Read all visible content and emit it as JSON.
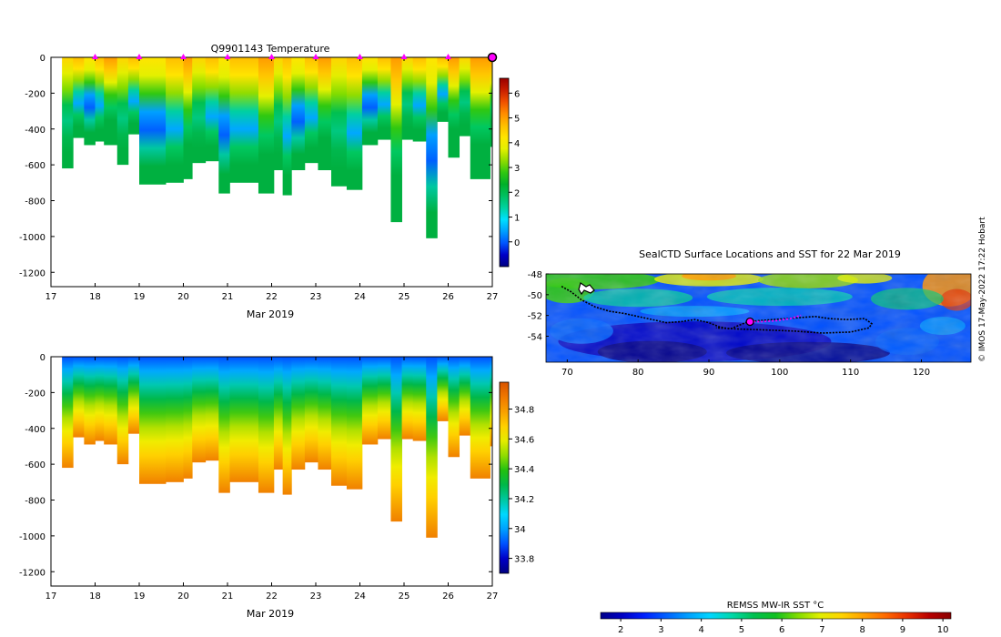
{
  "credit": "© IMOS 17-May-2022 17:22 Hobart",
  "colors": {
    "profile_temperature": [
      "#000080",
      "#0000c8",
      "#0055ff",
      "#00a0ff",
      "#00e0ff",
      "#00d2a0",
      "#00c060",
      "#00b02a",
      "#30c810",
      "#90dc00",
      "#e4f000",
      "#ffe400",
      "#ffbe00",
      "#ff8c00",
      "#f05000",
      "#c81e00",
      "#9a0000"
    ],
    "profile_salinity": [
      "#000080",
      "#0000c8",
      "#0050ff",
      "#00a0ff",
      "#00d8ff",
      "#00c8a0",
      "#00b84a",
      "#20c010",
      "#90dc00",
      "#e4ec00",
      "#ffd000",
      "#f8a000",
      "#f07800",
      "#d85400"
    ],
    "sst": [
      "#00008a",
      "#0000c4",
      "#0020ff",
      "#0060ff",
      "#00a0ff",
      "#00d6ff",
      "#00d8a8",
      "#00c050",
      "#10c020",
      "#80dc00",
      "#e0ee00",
      "#ffd400",
      "#ffa000",
      "#ff6a00",
      "#e83000",
      "#b80000",
      "#8a0000"
    ],
    "track": "#000000",
    "track_recent": "#ff00ff",
    "marker": "#ff00ff"
  },
  "chart_data": [
    {
      "id": "temperature-section",
      "type": "heatmap",
      "title": "Q9901143  Temperature",
      "xlabel": "Mar 2019",
      "ylabel": "",
      "xlim": [
        17,
        27
      ],
      "ylim": [
        -1280,
        0
      ],
      "xticks": [
        "17",
        "18",
        "19",
        "20",
        "21",
        "22",
        "23",
        "24",
        "25",
        "26",
        "27"
      ],
      "yticks": [
        "0",
        "-200",
        "-400",
        "-600",
        "-800",
        "-1000",
        "-1200"
      ],
      "colorbar": {
        "range": [
          -1,
          6.6
        ],
        "ticks": [
          "6",
          "5",
          "4",
          "3",
          "2",
          "1",
          "0"
        ]
      },
      "profile_marker_days": [
        18,
        19,
        20,
        21,
        22,
        23,
        24,
        25,
        26
      ],
      "last_profile_day": 27,
      "profiles": [
        {
          "x": 17.25,
          "w": 0.25,
          "depth": 620
        },
        {
          "x": 17.5,
          "w": 0.25,
          "depth": 450
        },
        {
          "x": 17.75,
          "w": 0.25,
          "depth": 490
        },
        {
          "x": 18.0,
          "w": 0.2,
          "depth": 470
        },
        {
          "x": 18.2,
          "w": 0.3,
          "depth": 490
        },
        {
          "x": 18.5,
          "w": 0.25,
          "depth": 600
        },
        {
          "x": 18.75,
          "w": 0.25,
          "depth": 430
        },
        {
          "x": 19.0,
          "w": 0.6,
          "depth": 710
        },
        {
          "x": 19.6,
          "w": 0.4,
          "depth": 700
        },
        {
          "x": 20.0,
          "w": 0.2,
          "depth": 680
        },
        {
          "x": 20.2,
          "w": 0.3,
          "depth": 590
        },
        {
          "x": 20.5,
          "w": 0.3,
          "depth": 580
        },
        {
          "x": 20.8,
          "w": 0.25,
          "depth": 760
        },
        {
          "x": 21.05,
          "w": 0.65,
          "depth": 700
        },
        {
          "x": 21.7,
          "w": 0.35,
          "depth": 760
        },
        {
          "x": 22.05,
          "w": 0.2,
          "depth": 630
        },
        {
          "x": 22.25,
          "w": 0.2,
          "depth": 770
        },
        {
          "x": 22.45,
          "w": 0.3,
          "depth": 630
        },
        {
          "x": 22.75,
          "w": 0.3,
          "depth": 590
        },
        {
          "x": 23.05,
          "w": 0.3,
          "depth": 630
        },
        {
          "x": 23.35,
          "w": 0.35,
          "depth": 720
        },
        {
          "x": 23.7,
          "w": 0.35,
          "depth": 740
        },
        {
          "x": 24.05,
          "w": 0.35,
          "depth": 490
        },
        {
          "x": 24.4,
          "w": 0.3,
          "depth": 460
        },
        {
          "x": 24.7,
          "w": 0.25,
          "depth": 920
        },
        {
          "x": 24.95,
          "w": 0.25,
          "depth": 460
        },
        {
          "x": 25.2,
          "w": 0.3,
          "depth": 470
        },
        {
          "x": 25.5,
          "w": 0.25,
          "depth": 1010
        },
        {
          "x": 25.75,
          "w": 0.25,
          "depth": 360
        },
        {
          "x": 26.0,
          "w": 0.25,
          "depth": 560
        },
        {
          "x": 26.25,
          "w": 0.25,
          "depth": 440
        },
        {
          "x": 26.5,
          "w": 0.45,
          "depth": 680
        },
        {
          "x": 26.95,
          "w": 0.05,
          "depth": 500
        }
      ]
    },
    {
      "id": "salinity-section",
      "type": "heatmap",
      "title": "",
      "xlabel": "Mar 2019",
      "ylabel": "",
      "xlim": [
        17,
        27
      ],
      "ylim": [
        -1280,
        0
      ],
      "xticks": [
        "17",
        "18",
        "19",
        "20",
        "21",
        "22",
        "23",
        "24",
        "25",
        "26",
        "27"
      ],
      "yticks": [
        "0",
        "-200",
        "-400",
        "-600",
        "-800",
        "-1000",
        "-1200"
      ],
      "colorbar": {
        "range": [
          33.7,
          34.98
        ],
        "ticks": [
          "34.8",
          "34.6",
          "34.4",
          "34.2",
          "34",
          "33.8"
        ]
      }
    },
    {
      "id": "sst-map",
      "type": "heatmap",
      "title": "SealCTD Surface Locations and SST for 22 Mar 2019",
      "xlabel": "",
      "ylabel": "",
      "xlim": [
        67,
        127
      ],
      "ylim": [
        -56.5,
        -48
      ],
      "xticks": [
        "70",
        "80",
        "90",
        "100",
        "110",
        "120"
      ],
      "yticks": [
        "-48",
        "-50",
        "-52",
        "-54"
      ],
      "track_lonlat": [
        [
          69.2,
          -49.2
        ],
        [
          70.5,
          -49.7
        ],
        [
          72,
          -50.5
        ],
        [
          74,
          -51.2
        ],
        [
          76,
          -51.6
        ],
        [
          78,
          -51.8
        ],
        [
          80,
          -52.1
        ],
        [
          82,
          -52.4
        ],
        [
          84,
          -52.7
        ],
        [
          86,
          -52.6
        ],
        [
          88,
          -52.4
        ],
        [
          90,
          -52.7
        ],
        [
          91.5,
          -53.1
        ],
        [
          93,
          -53.3
        ],
        [
          95.5,
          -52.6
        ],
        [
          97,
          -52.5
        ],
        [
          99,
          -52.4
        ],
        [
          101,
          -52.3
        ],
        [
          103,
          -52.2
        ],
        [
          105,
          -52.1
        ],
        [
          107,
          -52.3
        ],
        [
          109.5,
          -52.4
        ],
        [
          112,
          -52.3
        ],
        [
          113,
          -52.8
        ],
        [
          112.6,
          -53.2
        ],
        [
          110,
          -53.6
        ],
        [
          106,
          -53.7
        ],
        [
          102,
          -53.5
        ],
        [
          98,
          -53.4
        ],
        [
          94,
          -53.3
        ],
        [
          91,
          -53.2
        ]
      ],
      "recent_track_lonlat": [
        [
          95.8,
          -52.6
        ],
        [
          97.5,
          -52.6
        ],
        [
          99.5,
          -52.5
        ],
        [
          101.5,
          -52.3
        ],
        [
          103,
          -52.0
        ]
      ],
      "current_position": [
        95.8,
        -52.6
      ],
      "colorbar": {
        "label": "REMSS MW-IR SST °C",
        "range": [
          1.5,
          10.2
        ],
        "ticks": [
          "2",
          "3",
          "4",
          "5",
          "6",
          "7",
          "8",
          "9",
          "10"
        ]
      }
    }
  ]
}
